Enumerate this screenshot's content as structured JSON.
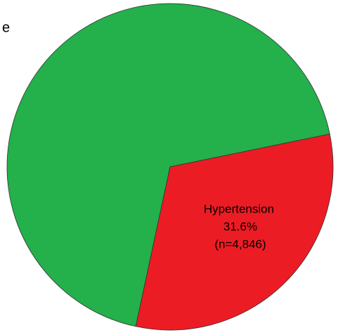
{
  "chart_data": {
    "type": "pie",
    "slices": [
      {
        "name": "e",
        "value": 68.4,
        "color": "#24b04b"
      },
      {
        "name": "Hypertension",
        "value": 31.6,
        "value_label": "31.6%",
        "count": 4846,
        "count_label": "(n=4,846)",
        "color": "#ec1c24"
      }
    ]
  }
}
